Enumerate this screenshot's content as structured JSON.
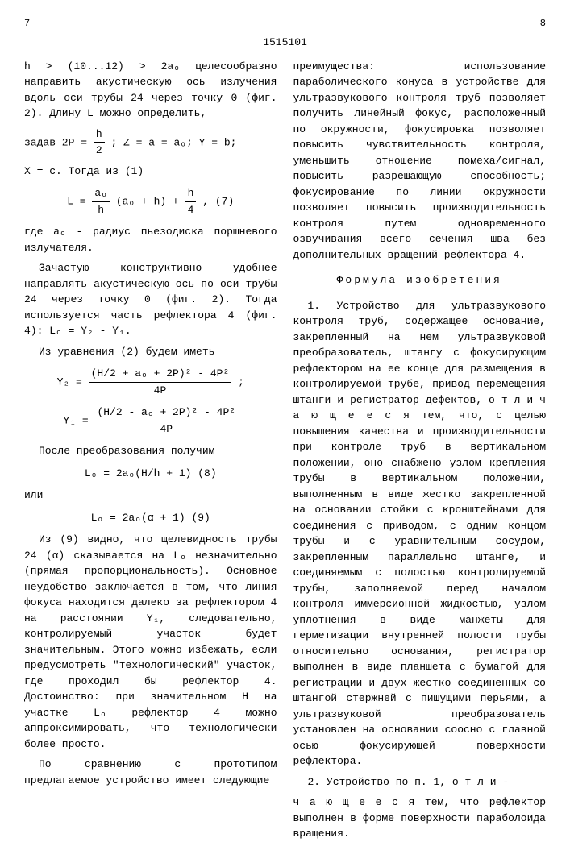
{
  "doc_id": "1515101",
  "page_left": "7",
  "page_right": "8",
  "line_markers": [
    "5",
    "10",
    "15",
    "20",
    "25",
    "30",
    "35",
    "40",
    "45",
    "50"
  ],
  "left_col": {
    "p1": "h > (10...12) > 2aₒ целесообразно направить акустическую ось излучения вдоль оси трубы 24 через точку 0 (фиг. 2). Длину L можно определить,",
    "p2_prefix": "задав 2P = ",
    "p2_frac_num": "h",
    "p2_frac_den": "2",
    "p2_suffix": "; Z = a = aₒ; Y = b;",
    "p3": "X = c. Тогда из (1)",
    "f1_lhs": "L = ",
    "f1_frac_num": "aₒ",
    "f1_frac_den": "h",
    "f1_mid": "(aₒ + h) + ",
    "f1_frac2_num": "h",
    "f1_frac2_den": "4",
    "f1_eqnum": ",     (7)",
    "p4": "где aₒ - радиус пьезодиска поршневого излучателя.",
    "p5": "Зачастую конструктивно удобнее направлять акустическую ось по оси трубы 24 через точку 0 (фиг. 2). Тогда используется часть рефлектора 4 (фиг. 4): Lₒ = Y₂ - Y₁.",
    "p6": "Из уравнения (2) будем иметь",
    "f2_lhs": "Y₂ = ",
    "f2_num": "(H/2 + aₒ + 2P)² - 4P²",
    "f2_den": "4P",
    "f2_suffix": ";",
    "f3_lhs": "Y₁ = ",
    "f3_num": "(H/2 - aₒ + 2P)² - 4P²",
    "f3_den": "4P",
    "p7": "После преобразования получим",
    "f4": "Lₒ = 2aₒ(H/h + 1)          (8)",
    "p8": "или",
    "f5": "Lₒ = 2aₒ(α + 1)          (9)",
    "p9": "Из (9) видно, что щелевидность трубы 24 (α) сказывается на Lₒ незначительно (прямая пропорциональность). Основное неудобство заключается в том, что линия фокуса находится далеко за рефлектором 4 на расстоянии Y₁, следовательно, контролируемый участок будет значительным. Этого можно избежать, если предусмотреть \"технологический\" участок, где проходил бы рефлектор 4. Достоинство: при значительном H на участке Lₒ рефлектор 4 можно аппроксимировать, что технологически более просто.",
    "p10": "По сравнению с прототипом предлагаемое устройство имеет следующие"
  },
  "right_col": {
    "p1": "преимущества: использование параболического конуса в устройстве для ультразвукового контроля труб позволяет получить линейный фокус, расположенный по окружности, фокусировка позволяет повысить чувствительность контроля, уменьшить отношение помеха/сигнал, повысить разрешающую способность; фокусирование по линии окружности позволяет повысить производительность контроля путем одновременного озвучивания всего сечения шва без дополнительных вращений рефлектора 4.",
    "section_title": "Формула изобретения",
    "p2": "1. Устройство для ультразвукового контроля труб, содержащее основание, закрепленный на нем ультразвуковой преобразователь, штангу с фокусирующим рефлектором на ее конце для размещения в контролируемой трубе, привод перемещения штанги и регистратор дефектов,  о т л и ч а ю щ е е с я  тем, что, с целью повышения качества и производительности при контроле труб в вертикальном положении, оно снабжено узлом крепления трубы в вертикальном положении, выполненным в виде жестко закрепленной на основании стойки с кронштейнами для соединения с приводом, с одним концом трубы и с уравнительным сосудом, закрепленным параллельно штанге, и соединяемым с полостью контролируемой трубы, заполняемой перед началом контроля иммерсионной жидкостью, узлом уплотнения в виде манжеты для герметизации внутренней полости трубы относительно основания, регистратор выполнен в виде планшета с бумагой для регистрации и двух жестко соединенных со штангой стержней с пишущими перьями, а ультразвуковой преобразователь установлен на основании соосно с главной осью фокусирующей поверхности рефлектора.",
    "p3": "2. Устройство по п. 1,  о т л и -",
    "p4": "ч а ю щ е е с я  тем, что рефлектор выполнен в форме поверхности параболоида вращения."
  }
}
